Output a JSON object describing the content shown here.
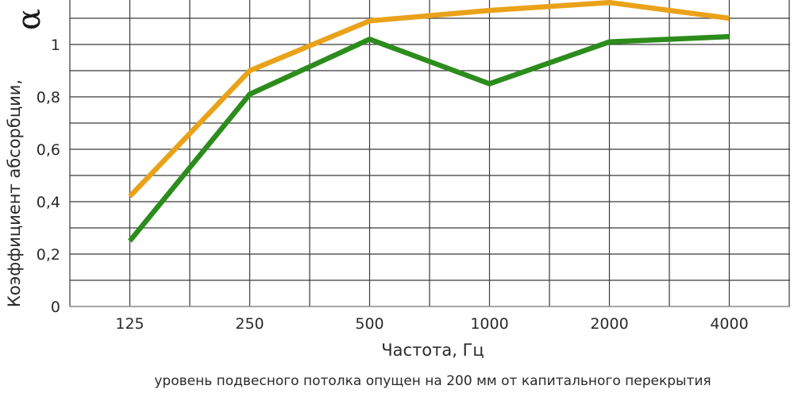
{
  "chart_data": {
    "type": "line",
    "categories": [
      "125",
      "250",
      "500",
      "1000",
      "2000",
      "4000"
    ],
    "series": [
      {
        "values": [
          0.42,
          0.9,
          1.09,
          1.13,
          1.16,
          1.1
        ],
        "color": "#eaa21a"
      },
      {
        "values": [
          0.25,
          0.81,
          1.02,
          0.85,
          1.01,
          1.03
        ],
        "color": "#2c8c1c"
      }
    ],
    "yticks": [
      "0",
      "0,2",
      "0,4",
      "0,6",
      "0,8",
      "1"
    ],
    "ylim": [
      0,
      1.2
    ],
    "xlabel": "Частота, Гц",
    "ylabel": "Коэффициент абсорбции,",
    "ylabel_symbol": "α",
    "grid": true,
    "note": "уровень подвесного потолка опущен на 200 мм от капитального перекрытия"
  }
}
